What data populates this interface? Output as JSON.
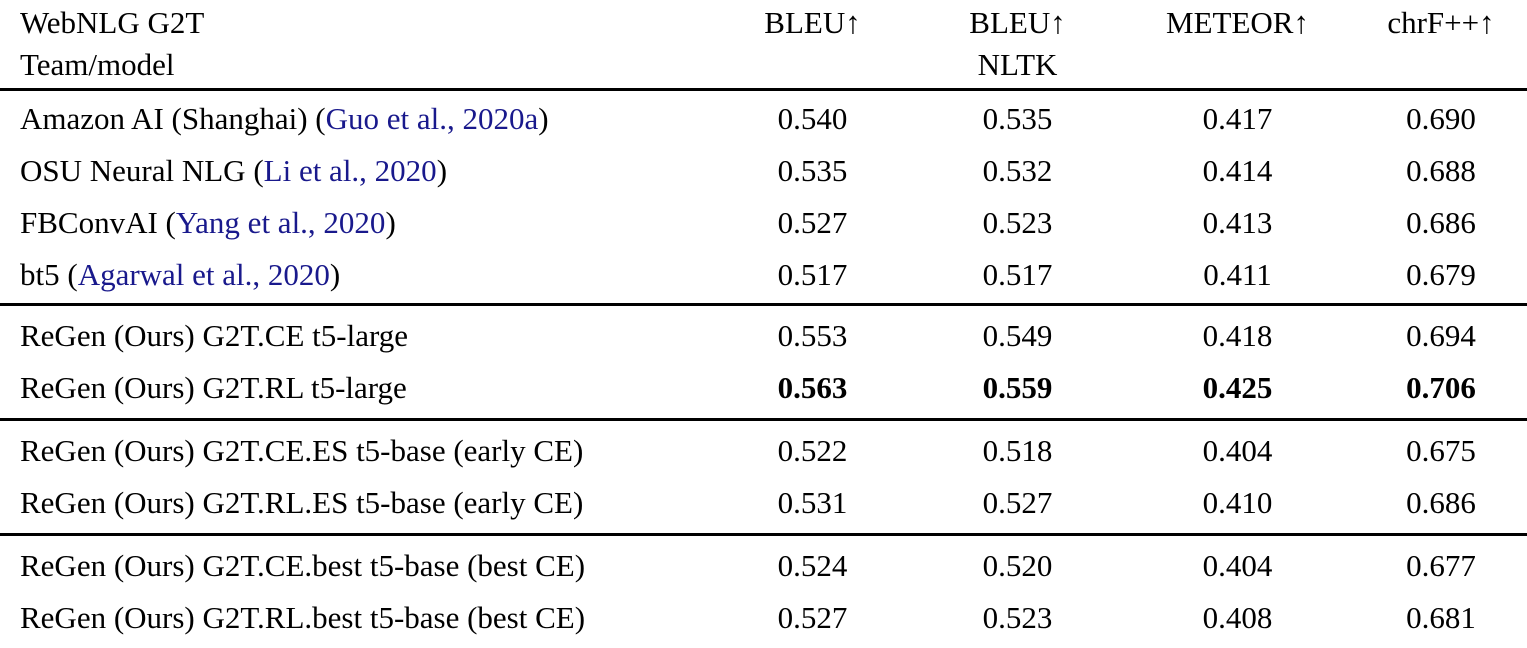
{
  "colors": {
    "background": "#ffffff",
    "text": "#000000",
    "citation_link": "#19198C",
    "rule": "#000000"
  },
  "table": {
    "title_line1": "WebNLG G2T",
    "title_line2": "Team/model",
    "columns": [
      {
        "line1": "BLEU↑",
        "line2": ""
      },
      {
        "line1": "BLEU↑",
        "line2": "NLTK"
      },
      {
        "line1": "METEOR↑",
        "line2": ""
      },
      {
        "line1": "chrF++↑",
        "line2": ""
      }
    ],
    "groups": [
      {
        "rows": [
          {
            "team_prefix": "Amazon AI (Shanghai) (",
            "citation": "Guo et al., 2020a",
            "suffix": ")",
            "values": [
              "0.540",
              "0.535",
              "0.417",
              "0.690"
            ]
          },
          {
            "team_prefix": "OSU Neural NLG (",
            "citation": "Li et al., 2020",
            "suffix": ")",
            "values": [
              "0.535",
              "0.532",
              "0.414",
              "0.688"
            ]
          },
          {
            "team_prefix": "FBConvAI (",
            "citation": "Yang et al., 2020",
            "suffix": ")",
            "values": [
              "0.527",
              "0.523",
              "0.413",
              "0.686"
            ]
          },
          {
            "team_prefix": "bt5 (",
            "citation": "Agarwal et al., 2020",
            "suffix": ")",
            "values": [
              "0.517",
              "0.517",
              "0.411",
              "0.679"
            ]
          }
        ]
      },
      {
        "rows": [
          {
            "team_prefix": "ReGen (Ours) G2T.CE t5-large",
            "citation": "",
            "suffix": "",
            "bold": false,
            "values": [
              "0.553",
              "0.549",
              "0.418",
              "0.694"
            ]
          },
          {
            "team_prefix": "ReGen (Ours) G2T.RL t5-large",
            "citation": "",
            "suffix": "",
            "bold": true,
            "values": [
              "0.563",
              "0.559",
              "0.425",
              "0.706"
            ]
          }
        ]
      },
      {
        "rows": [
          {
            "team_prefix": "ReGen (Ours) G2T.CE.ES t5-base (early CE)",
            "citation": "",
            "suffix": "",
            "values": [
              "0.522",
              "0.518",
              "0.404",
              "0.675"
            ]
          },
          {
            "team_prefix": "ReGen (Ours) G2T.RL.ES t5-base (early CE)",
            "citation": "",
            "suffix": "",
            "values": [
              "0.531",
              "0.527",
              "0.410",
              "0.686"
            ]
          }
        ]
      },
      {
        "rows": [
          {
            "team_prefix": "ReGen (Ours) G2T.CE.best t5-base (best CE)",
            "citation": "",
            "suffix": "",
            "values": [
              "0.524",
              "0.520",
              "0.404",
              "0.677"
            ]
          },
          {
            "team_prefix": "ReGen (Ours) G2T.RL.best t5-base (best CE)",
            "citation": "",
            "suffix": "",
            "values": [
              "0.527",
              "0.523",
              "0.408",
              "0.681"
            ]
          }
        ]
      }
    ]
  }
}
